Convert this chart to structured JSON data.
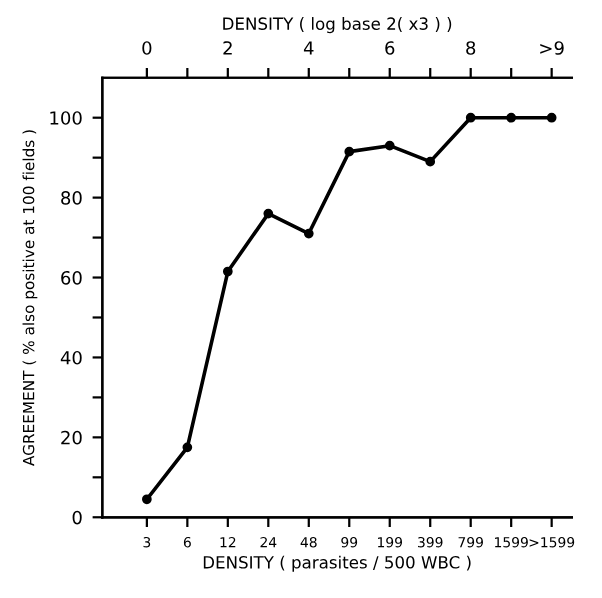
{
  "chart_data": {
    "type": "line",
    "xlabel": "DENSITY ( parasites / 500 WBC )",
    "ylabel": "AGREEMENT ( % also positive at 100 fields )",
    "x2label": "DENSITY ( log base 2( x3 ) )",
    "categories": [
      "3",
      "6",
      "12",
      "24",
      "48",
      "99",
      "199",
      "399",
      "799",
      "1599",
      ">1599"
    ],
    "series": [
      {
        "color": "#000000",
        "values": [
          4.5,
          17.5,
          61.5,
          76,
          71,
          91.5,
          93,
          89,
          100,
          100,
          100
        ]
      }
    ],
    "ylim": [
      0,
      110
    ],
    "yticks": [
      0,
      {
        "value": 10,
        "label": null
      },
      20,
      {
        "value": 30,
        "label": null
      },
      40,
      {
        "value": 50,
        "label": null
      },
      60,
      {
        "value": 70,
        "label": null
      },
      80,
      {
        "value": 90,
        "label": null
      },
      100
    ],
    "x2lim": [
      -1.1,
      10.5
    ],
    "x2ticks": [
      0,
      {
        "value": 1,
        "label": null
      },
      2,
      {
        "value": 3,
        "label": null
      },
      4,
      {
        "value": 5,
        "label": null
      },
      6,
      {
        "value": 7,
        "label": null
      },
      8,
      {
        "value": 9,
        "label": null
      },
      {
        "value": 10,
        "label": ">9"
      }
    ],
    "marker": "circle",
    "line_style": "solid"
  }
}
